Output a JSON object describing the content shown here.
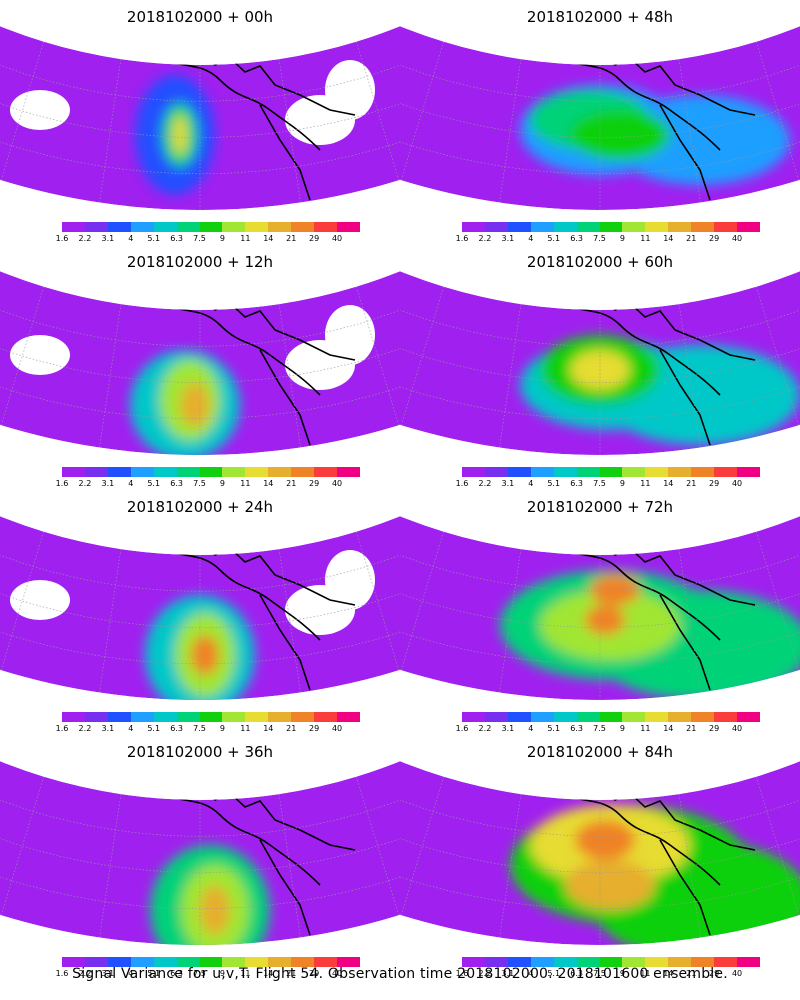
{
  "panels": [
    {
      "title": "2018102000 + 00h",
      "level": 0
    },
    {
      "title": "2018102000 + 48h",
      "level": 4
    },
    {
      "title": "2018102000 + 12h",
      "level": 1
    },
    {
      "title": "2018102000 + 60h",
      "level": 5
    },
    {
      "title": "2018102000 + 24h",
      "level": 2
    },
    {
      "title": "2018102000 + 72h",
      "level": 6
    },
    {
      "title": "2018102000 + 36h",
      "level": 3
    },
    {
      "title": "2018102000 + 84h",
      "level": 7
    }
  ],
  "colorbar": {
    "labels": [
      "1.6",
      "2.2",
      "3.1",
      "4",
      "5.1",
      "6.3",
      "7.5",
      "9",
      "11",
      "14",
      "21",
      "29",
      "40"
    ],
    "colors": [
      "#a020f0",
      "#7830f0",
      "#2050ff",
      "#1f9fff",
      "#00c8c8",
      "#00d278",
      "#10d010",
      "#a0e632",
      "#e6dc32",
      "#e6af2d",
      "#f08228",
      "#fa3c3c",
      "#f00082"
    ]
  },
  "footer": "Signal Variance for u,v,T. Flight 54. Observation time 2018102000. 2018101600 ensemble."
}
